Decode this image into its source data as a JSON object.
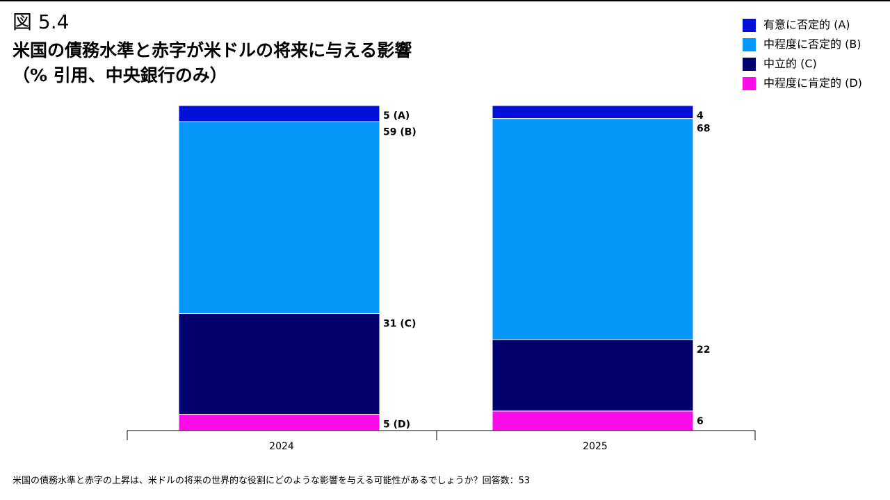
{
  "figure_number": "図 5.4",
  "title_line1": "米国の債務水準と赤字が米ドルの将来に与える影響",
  "title_line2": "（% 引用、中央銀行のみ）",
  "footnote": "米国の債務水準と赤字の上昇は、米ドルの将来の世界的な役割にどのような影響を与える可能性があるでしょうか？回答数：53",
  "chart_data": {
    "type": "bar",
    "stacked": true,
    "categories": [
      "2024",
      "2025"
    ],
    "series": [
      {
        "name": "有意に否定的 (A)",
        "color": "#0010d8",
        "values": [
          5,
          4
        ],
        "labels": [
          "5 (A)",
          "4"
        ]
      },
      {
        "name": "中程度に否定的 (B)",
        "color": "#0697fa",
        "values": [
          59,
          68
        ],
        "labels": [
          "59 (B)",
          "68"
        ]
      },
      {
        "name": "中立的 (C)",
        "color": "#01006e",
        "values": [
          31,
          22
        ],
        "labels": [
          "31 (C)",
          "22"
        ]
      },
      {
        "name": "中程度に肯定的 (D)",
        "color": "#fc0ce7",
        "values": [
          5,
          6
        ],
        "labels": [
          "5 (D)",
          "6"
        ]
      }
    ],
    "ylim": [
      0,
      100
    ],
    "grid": false,
    "legend": "top-right"
  }
}
